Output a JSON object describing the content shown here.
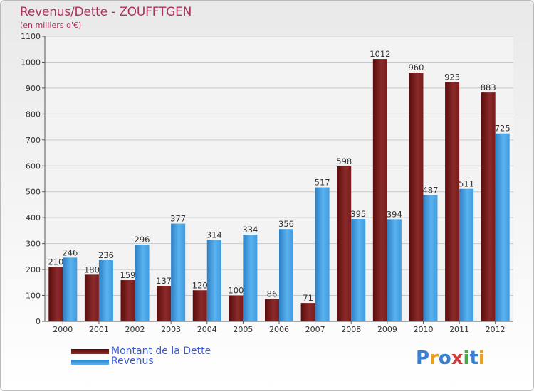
{
  "chart_data": {
    "type": "bar",
    "title": "Revenus/Dette - ZOUFFTGEN",
    "subtitle": "(en milliers d'€)",
    "categories": [
      "2000",
      "2001",
      "2002",
      "2003",
      "2004",
      "2005",
      "2006",
      "2007",
      "2008",
      "2009",
      "2010",
      "2011",
      "2012"
    ],
    "series": [
      {
        "name": "Montant de la Dette",
        "color": "#7a1a1a",
        "values": [
          210,
          180,
          159,
          137,
          120,
          100,
          86,
          71,
          598,
          1012,
          960,
          923,
          883
        ]
      },
      {
        "name": "Revenus",
        "color": "#3d9be0",
        "values": [
          246,
          236,
          296,
          377,
          314,
          334,
          356,
          517,
          395,
          394,
          487,
          511,
          725
        ]
      }
    ],
    "ylim": [
      0,
      1100
    ],
    "yticks": [
      0,
      100,
      200,
      300,
      400,
      500,
      600,
      700,
      800,
      900,
      1000,
      1100
    ],
    "grid": true,
    "legend_position": "bottom-left"
  },
  "logo": {
    "letters": [
      "P",
      "r",
      "o",
      "x",
      "i",
      "t",
      "i"
    ],
    "colors": [
      "#3a7fd0",
      "#e8a020",
      "#3a7fd0",
      "#d23a3a",
      "#4aa84a",
      "#3a7fd0",
      "#e8a020"
    ]
  }
}
